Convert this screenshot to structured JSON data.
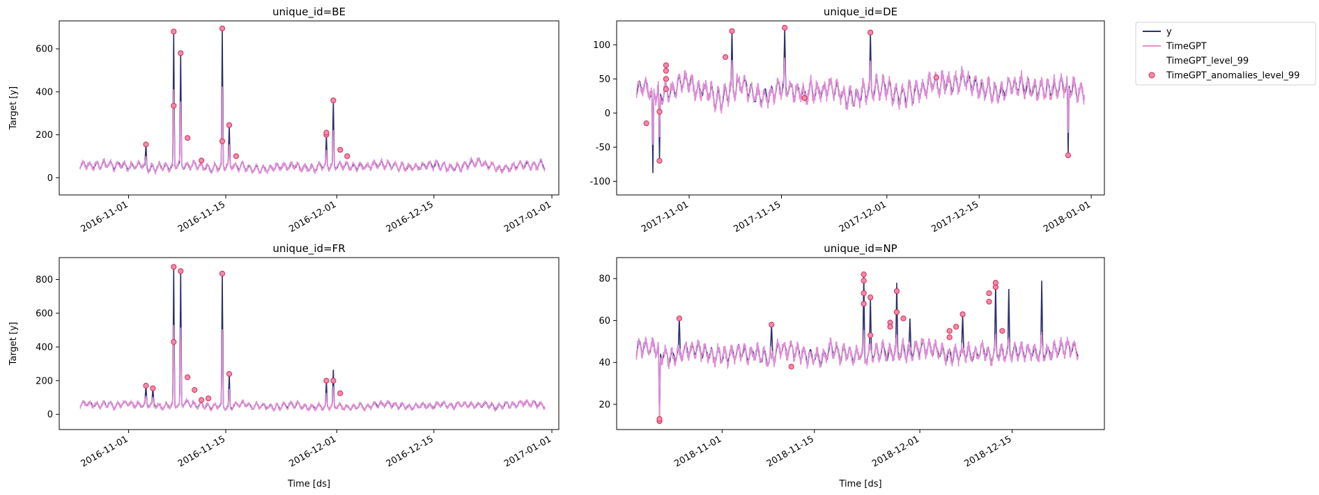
{
  "colors": {
    "y": "#2e2f6e",
    "forecast": "#de8fd6",
    "anomaly_fill": "#f08ab0",
    "anomaly_edge": "#d62d4a"
  },
  "legend": {
    "items": [
      {
        "label": "y",
        "marker": "line",
        "color": "#2e2f6e"
      },
      {
        "label": "TimeGPT",
        "marker": "line",
        "color": "#de8fd6"
      },
      {
        "label": "TimeGPT_level_99",
        "marker": "none",
        "color": "#ffffff"
      },
      {
        "label": "TimeGPT_anomalies_level_99",
        "marker": "circle",
        "color": "#f08ab0"
      }
    ],
    "placement": "outside-top-right"
  },
  "chart_data": [
    {
      "type": "line",
      "title": "unique_id=BE",
      "xlabel": "",
      "ylabel": "Target [y]",
      "x_range": [
        "2016-10-22",
        "2017-01-02"
      ],
      "x_ticks": [
        "2016-11-01",
        "2016-11-15",
        "2016-12-01",
        "2016-12-15",
        "2017-01-01"
      ],
      "ylim": [
        -80,
        730
      ],
      "y_ticks": [
        0,
        200,
        400,
        600
      ],
      "data_span": [
        "2016-10-25",
        "2016-12-31"
      ],
      "baseline": {
        "mean": 55,
        "amplitude": 22
      },
      "spikes": [
        {
          "x": "2016-11-03",
          "y": 155
        },
        {
          "x": "2016-11-07",
          "y": 680
        },
        {
          "x": "2016-11-08",
          "y": 580
        },
        {
          "x": "2016-11-14",
          "y": 695
        },
        {
          "x": "2016-11-15",
          "y": 245
        },
        {
          "x": "2016-11-29",
          "y": 200
        },
        {
          "x": "2016-11-30",
          "y": 360
        }
      ],
      "anomalies": [
        {
          "x": "2016-11-03",
          "y": 155
        },
        {
          "x": "2016-11-07",
          "y": 680
        },
        {
          "x": "2016-11-07",
          "y": 335
        },
        {
          "x": "2016-11-08",
          "y": 580
        },
        {
          "x": "2016-11-09",
          "y": 185
        },
        {
          "x": "2016-11-11",
          "y": 80
        },
        {
          "x": "2016-11-14",
          "y": 695
        },
        {
          "x": "2016-11-14",
          "y": 170
        },
        {
          "x": "2016-11-15",
          "y": 245
        },
        {
          "x": "2016-11-16",
          "y": 100
        },
        {
          "x": "2016-11-29",
          "y": 200
        },
        {
          "x": "2016-11-29",
          "y": 210
        },
        {
          "x": "2016-11-30",
          "y": 360
        },
        {
          "x": "2016-12-01",
          "y": 130
        },
        {
          "x": "2016-12-02",
          "y": 100
        }
      ]
    },
    {
      "type": "line",
      "title": "unique_id=DE",
      "xlabel": "",
      "ylabel": "",
      "x_range": [
        "2017-10-21",
        "2018-01-03"
      ],
      "x_ticks": [
        "2017-11-01",
        "2017-11-15",
        "2017-12-01",
        "2017-12-15",
        "2018-01-01"
      ],
      "ylim": [
        -120,
        135
      ],
      "y_ticks": [
        -100,
        -50,
        0,
        50,
        100
      ],
      "data_span": [
        "2017-10-24",
        "2017-12-31"
      ],
      "baseline": {
        "mean": 35,
        "amplitude": 18
      },
      "spikes": [
        {
          "x": "2017-10-26",
          "y": -88
        },
        {
          "x": "2017-10-27",
          "y": -70
        },
        {
          "x": "2017-11-07",
          "y": 120
        },
        {
          "x": "2017-11-15",
          "y": 125
        },
        {
          "x": "2017-11-18",
          "y": 20
        },
        {
          "x": "2017-11-28",
          "y": 118
        },
        {
          "x": "2017-12-28",
          "y": -62
        }
      ],
      "anomalies": [
        {
          "x": "2017-10-25",
          "y": -15
        },
        {
          "x": "2017-10-27",
          "y": -70
        },
        {
          "x": "2017-10-27",
          "y": 2
        },
        {
          "x": "2017-10-28",
          "y": 35
        },
        {
          "x": "2017-10-28",
          "y": 50
        },
        {
          "x": "2017-10-28",
          "y": 62
        },
        {
          "x": "2017-10-28",
          "y": 70
        },
        {
          "x": "2017-11-06",
          "y": 82
        },
        {
          "x": "2017-11-07",
          "y": 120
        },
        {
          "x": "2017-11-15",
          "y": 125
        },
        {
          "x": "2017-11-18",
          "y": 22
        },
        {
          "x": "2017-11-28",
          "y": 118
        },
        {
          "x": "2017-12-08",
          "y": 52
        },
        {
          "x": "2017-12-28",
          "y": -62
        }
      ]
    },
    {
      "type": "line",
      "title": "unique_id=FR",
      "xlabel": "Time [ds]",
      "ylabel": "Target [y]",
      "x_range": [
        "2016-10-22",
        "2017-01-02"
      ],
      "x_ticks": [
        "2016-11-01",
        "2016-11-15",
        "2016-12-01",
        "2016-12-15",
        "2017-01-01"
      ],
      "ylim": [
        -90,
        930
      ],
      "y_ticks": [
        0,
        200,
        400,
        600,
        800
      ],
      "data_span": [
        "2016-10-25",
        "2016-12-31"
      ],
      "baseline": {
        "mean": 55,
        "amplitude": 22
      },
      "spikes": [
        {
          "x": "2016-11-03",
          "y": 170
        },
        {
          "x": "2016-11-04",
          "y": 155
        },
        {
          "x": "2016-11-07",
          "y": 875
        },
        {
          "x": "2016-11-08",
          "y": 850
        },
        {
          "x": "2016-11-14",
          "y": 835
        },
        {
          "x": "2016-11-15",
          "y": 240
        },
        {
          "x": "2016-11-29",
          "y": 200
        },
        {
          "x": "2016-11-30",
          "y": 265
        }
      ],
      "anomalies": [
        {
          "x": "2016-11-03",
          "y": 170
        },
        {
          "x": "2016-11-04",
          "y": 155
        },
        {
          "x": "2016-11-07",
          "y": 875
        },
        {
          "x": "2016-11-07",
          "y": 430
        },
        {
          "x": "2016-11-08",
          "y": 850
        },
        {
          "x": "2016-11-09",
          "y": 220
        },
        {
          "x": "2016-11-10",
          "y": 145
        },
        {
          "x": "2016-11-11",
          "y": 85
        },
        {
          "x": "2016-11-12",
          "y": 95
        },
        {
          "x": "2016-11-14",
          "y": 835
        },
        {
          "x": "2016-11-15",
          "y": 240
        },
        {
          "x": "2016-11-29",
          "y": 200
        },
        {
          "x": "2016-11-30",
          "y": 200
        },
        {
          "x": "2016-12-01",
          "y": 125
        }
      ]
    },
    {
      "type": "line",
      "title": "unique_id=NP",
      "xlabel": "Time [ds]",
      "ylabel": "",
      "x_range": [
        "2018-10-16",
        "2018-12-29"
      ],
      "x_ticks": [
        "2018-11-01",
        "2018-11-15",
        "2018-12-01",
        "2018-12-15"
      ],
      "ylim": [
        8,
        90
      ],
      "y_ticks": [
        20,
        40,
        60,
        80
      ],
      "data_span": [
        "2018-10-19",
        "2018-12-25"
      ],
      "baseline": {
        "mean": 45,
        "amplitude": 5
      },
      "spikes": [
        {
          "x": "2018-10-22",
          "y": 12
        },
        {
          "x": "2018-10-25",
          "y": 61
        },
        {
          "x": "2018-11-08",
          "y": 58
        },
        {
          "x": "2018-11-22",
          "y": 82
        },
        {
          "x": "2018-11-23",
          "y": 71
        },
        {
          "x": "2018-11-27",
          "y": 78
        },
        {
          "x": "2018-11-29",
          "y": 61
        },
        {
          "x": "2018-12-07",
          "y": 63
        },
        {
          "x": "2018-12-12",
          "y": 78
        },
        {
          "x": "2018-12-14",
          "y": 75
        },
        {
          "x": "2018-12-19",
          "y": 79
        }
      ],
      "anomalies": [
        {
          "x": "2018-10-22",
          "y": 12
        },
        {
          "x": "2018-10-22",
          "y": 13
        },
        {
          "x": "2018-10-25",
          "y": 61
        },
        {
          "x": "2018-11-08",
          "y": 58
        },
        {
          "x": "2018-11-11",
          "y": 38
        },
        {
          "x": "2018-11-22",
          "y": 82
        },
        {
          "x": "2018-11-22",
          "y": 79
        },
        {
          "x": "2018-11-22",
          "y": 73
        },
        {
          "x": "2018-11-22",
          "y": 68
        },
        {
          "x": "2018-11-23",
          "y": 71
        },
        {
          "x": "2018-11-23",
          "y": 53
        },
        {
          "x": "2018-11-26",
          "y": 59
        },
        {
          "x": "2018-11-26",
          "y": 57
        },
        {
          "x": "2018-11-27",
          "y": 64
        },
        {
          "x": "2018-11-27",
          "y": 74
        },
        {
          "x": "2018-11-28",
          "y": 61
        },
        {
          "x": "2018-12-05",
          "y": 52
        },
        {
          "x": "2018-12-05",
          "y": 55
        },
        {
          "x": "2018-12-06",
          "y": 57
        },
        {
          "x": "2018-12-07",
          "y": 63
        },
        {
          "x": "2018-12-11",
          "y": 69
        },
        {
          "x": "2018-12-11",
          "y": 73
        },
        {
          "x": "2018-12-12",
          "y": 76
        },
        {
          "x": "2018-12-12",
          "y": 78
        },
        {
          "x": "2018-12-13",
          "y": 55
        }
      ]
    }
  ]
}
